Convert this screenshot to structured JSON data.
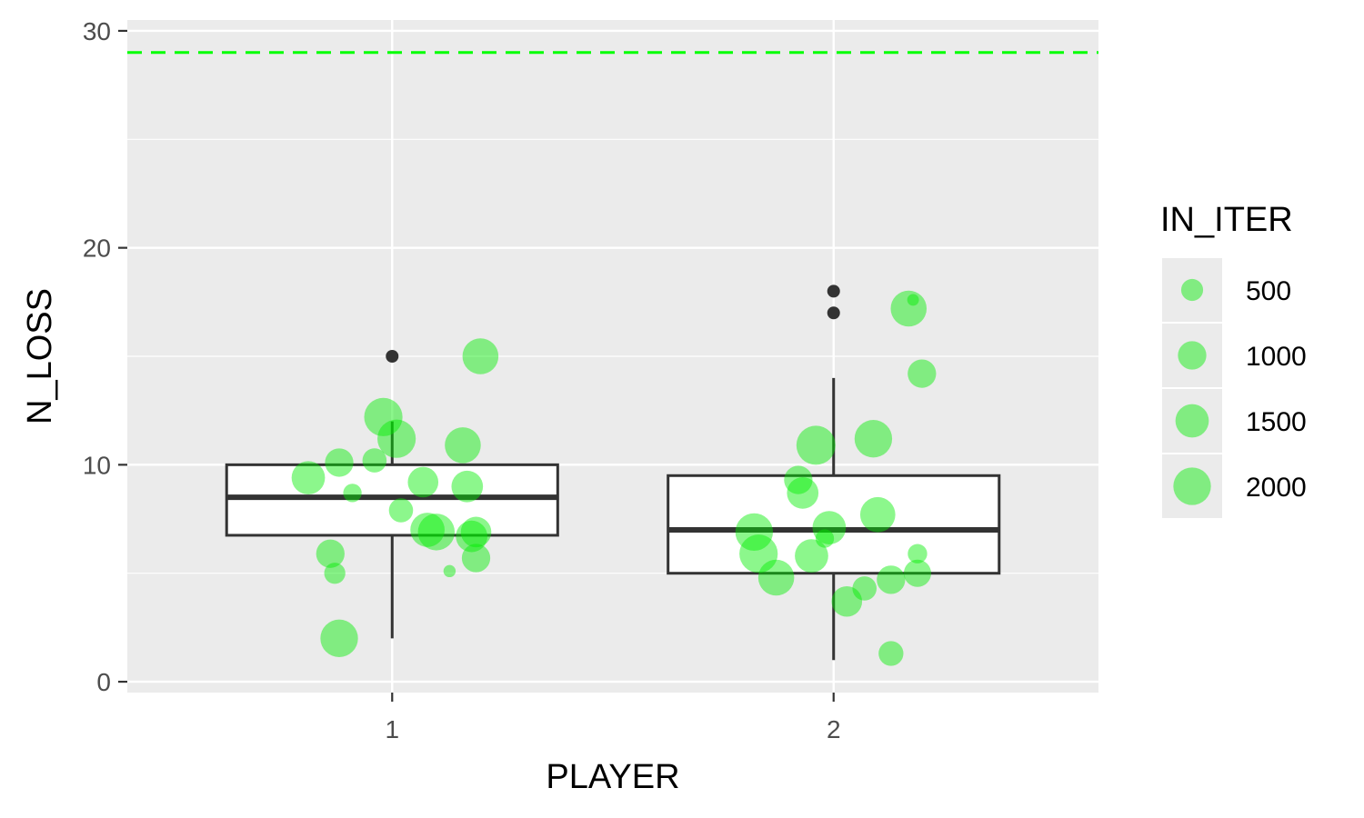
{
  "chart_data": {
    "type": "boxplot",
    "xlabel": "PLAYER",
    "ylabel": "N_LOSS",
    "categories": [
      "1",
      "2"
    ],
    "ylim": [
      -0.5,
      30.5
    ],
    "yticks": [
      0,
      10,
      20,
      30
    ],
    "ytick_labels": [
      "0",
      "10",
      "20",
      "30"
    ],
    "grid": true,
    "reference_line": {
      "y": 29,
      "color": "#00ff00",
      "style": "dashed"
    },
    "boxes": [
      {
        "category": "1",
        "min": 2,
        "q1": 6.75,
        "median": 8.5,
        "q3": 10,
        "max": 12,
        "outliers": [
          15
        ]
      },
      {
        "category": "2",
        "min": 1,
        "q1": 5,
        "median": 7,
        "q3": 9.5,
        "max": 14,
        "outliers": [
          17,
          18
        ]
      }
    ],
    "points": [
      {
        "x": 0.81,
        "y": 9.4,
        "size": 1500
      },
      {
        "x": 0.88,
        "y": 10.1,
        "size": 1000
      },
      {
        "x": 0.91,
        "y": 8.7,
        "size": 300
      },
      {
        "x": 0.96,
        "y": 10.2,
        "size": 650
      },
      {
        "x": 0.98,
        "y": 12.2,
        "size": 2100
      },
      {
        "x": 1.01,
        "y": 11.2,
        "size": 2100
      },
      {
        "x": 1.02,
        "y": 7.9,
        "size": 650
      },
      {
        "x": 1.07,
        "y": 9.2,
        "size": 1200
      },
      {
        "x": 1.08,
        "y": 7.0,
        "size": 1600
      },
      {
        "x": 1.1,
        "y": 6.9,
        "size": 1900
      },
      {
        "x": 1.13,
        "y": 5.1,
        "size": 70
      },
      {
        "x": 1.16,
        "y": 10.9,
        "size": 1800
      },
      {
        "x": 1.17,
        "y": 9.0,
        "size": 1300
      },
      {
        "x": 1.18,
        "y": 6.7,
        "size": 1300
      },
      {
        "x": 1.19,
        "y": 6.9,
        "size": 1200
      },
      {
        "x": 1.19,
        "y": 5.7,
        "size": 1000
      },
      {
        "x": 1.2,
        "y": 15.0,
        "size": 1800
      },
      {
        "x": 0.86,
        "y": 5.9,
        "size": 1000
      },
      {
        "x": 0.87,
        "y": 5.0,
        "size": 450
      },
      {
        "x": 0.88,
        "y": 2.0,
        "size": 2000
      },
      {
        "x": 1.82,
        "y": 6.9,
        "size": 2000
      },
      {
        "x": 1.83,
        "y": 5.9,
        "size": 2100
      },
      {
        "x": 1.87,
        "y": 4.8,
        "size": 1800
      },
      {
        "x": 1.92,
        "y": 9.3,
        "size": 1000
      },
      {
        "x": 1.93,
        "y": 8.7,
        "size": 1300
      },
      {
        "x": 1.96,
        "y": 10.9,
        "size": 2200
      },
      {
        "x": 1.95,
        "y": 5.8,
        "size": 1500
      },
      {
        "x": 1.98,
        "y": 6.6,
        "size": 300
      },
      {
        "x": 1.99,
        "y": 7.1,
        "size": 1500
      },
      {
        "x": 2.03,
        "y": 3.7,
        "size": 1200
      },
      {
        "x": 2.07,
        "y": 4.3,
        "size": 650
      },
      {
        "x": 2.09,
        "y": 11.2,
        "size": 2000
      },
      {
        "x": 2.1,
        "y": 7.7,
        "size": 1700
      },
      {
        "x": 2.13,
        "y": 1.3,
        "size": 700
      },
      {
        "x": 2.13,
        "y": 4.7,
        "size": 1000
      },
      {
        "x": 2.17,
        "y": 17.2,
        "size": 1800
      },
      {
        "x": 2.18,
        "y": 17.6,
        "size": 60
      },
      {
        "x": 2.19,
        "y": 5.9,
        "size": 350
      },
      {
        "x": 2.19,
        "y": 5.0,
        "size": 900
      },
      {
        "x": 2.2,
        "y": 14.2,
        "size": 1000
      }
    ],
    "point_color": "#00ee00",
    "point_alpha": 0.45,
    "box_color": "#333333",
    "legend": {
      "title": "IN_ITER",
      "position": "right",
      "entries": [
        {
          "label": "500",
          "size": 500
        },
        {
          "label": "1000",
          "size": 1000
        },
        {
          "label": "1500",
          "size": 1500
        },
        {
          "label": "2000",
          "size": 2000
        }
      ]
    }
  }
}
